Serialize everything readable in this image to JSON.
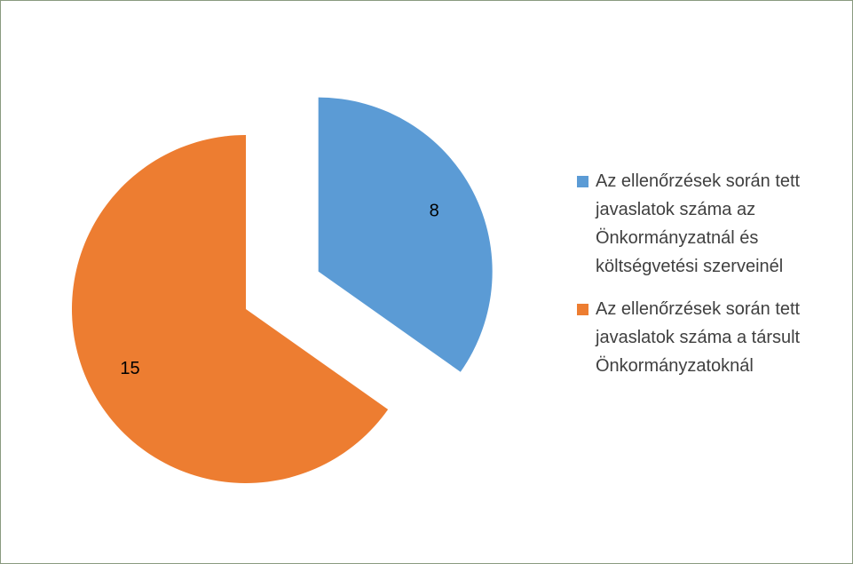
{
  "chart_data": {
    "type": "pie",
    "categories": [
      "Az ellenőrzések során tett javaslatok száma az Önkormányzatnál és költségvetési szerveinél",
      "Az ellenőrzések során tett javaslatok száma a társult Önkormányzatoknál"
    ],
    "values": [
      8,
      15
    ],
    "colors": [
      "#5b9bd5",
      "#ed7d31"
    ],
    "legend": "right"
  }
}
